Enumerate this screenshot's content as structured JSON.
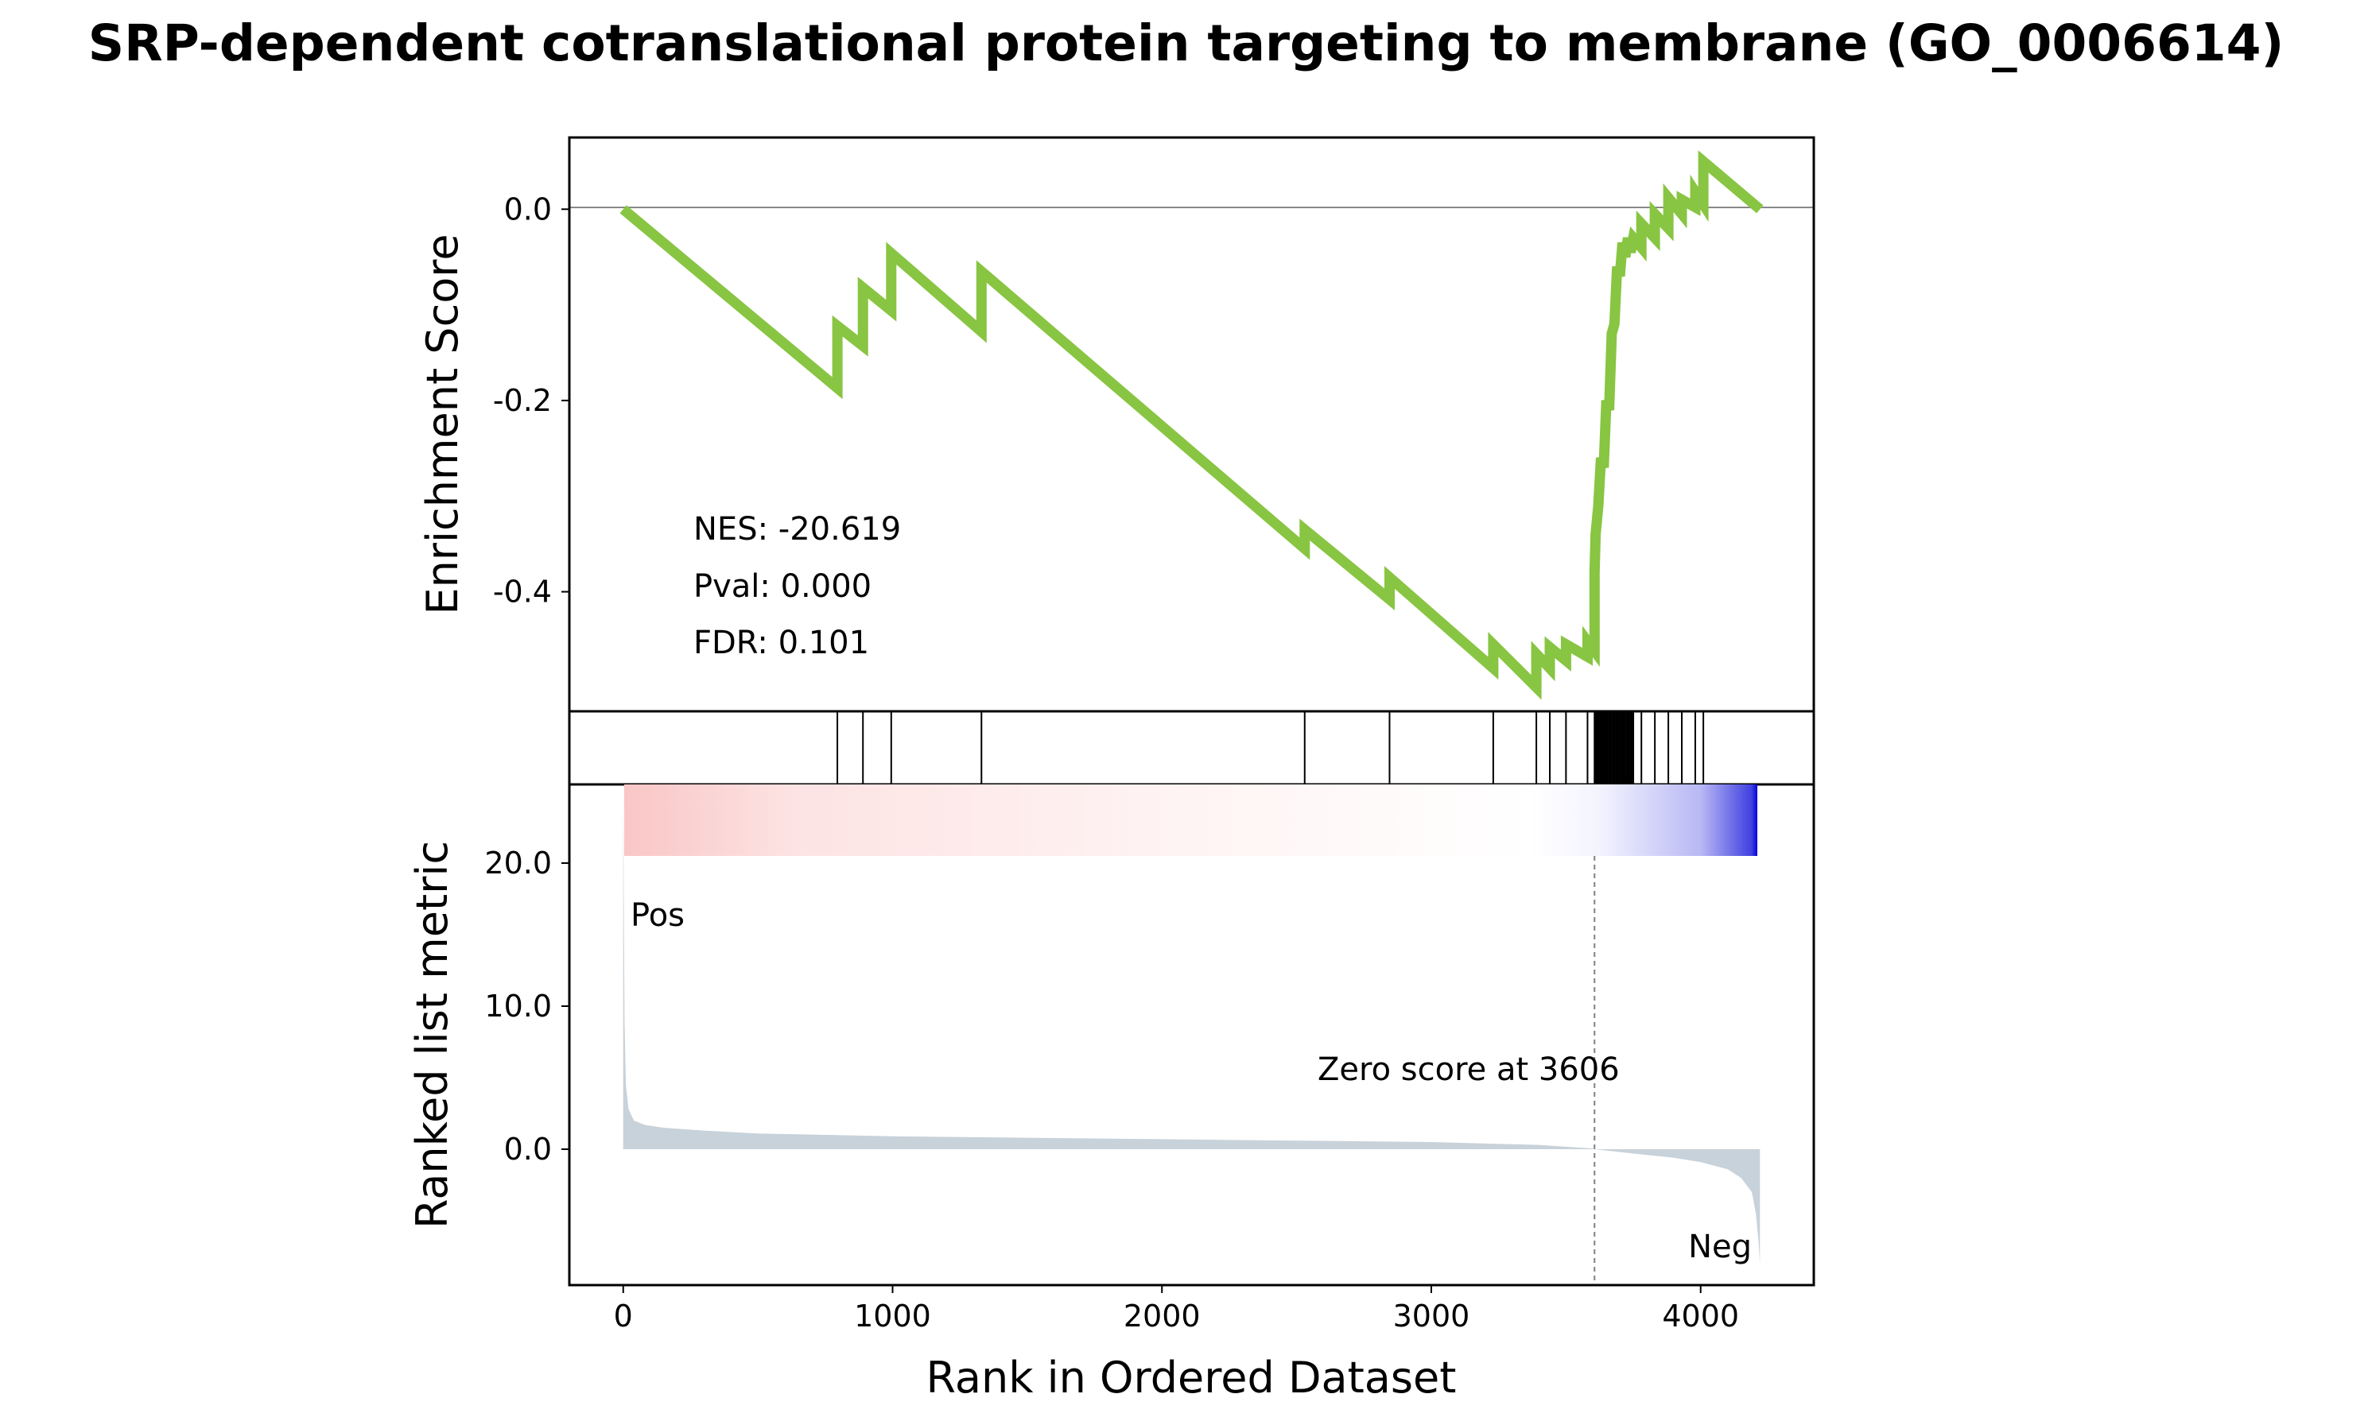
{
  "title": "SRP-dependent cotranslational protein targeting to membrane (GO_0006614)",
  "colors": {
    "es_line": "#88c542",
    "metric_fill": "#c8d2da",
    "pos_color": "#ff0000",
    "neg_color": "#0000ee",
    "zero_line": "#808080",
    "hit_line": "#000000"
  },
  "stats": {
    "nes": "NES: -20.619",
    "pval": "Pval: 0.000",
    "fdr": "FDR: 0.101"
  },
  "labels": {
    "pos": "Pos",
    "neg": "Neg",
    "zero_score": "Zero score at 3606"
  },
  "chart_data": [
    {
      "type": "line",
      "panel": "enrichment",
      "ylabel": "Enrichment Score",
      "xlim": [
        -200,
        4420
      ],
      "ylim": [
        -0.525,
        0.075
      ],
      "yticks": [
        0.0,
        -0.2,
        -0.4
      ],
      "ytick_labels": [
        "0.0",
        "-0.2",
        "-0.4"
      ],
      "x": [
        0,
        795,
        795,
        890,
        890,
        995,
        995,
        1330,
        1330,
        2530,
        2530,
        2845,
        2845,
        3230,
        3230,
        3390,
        3390,
        3440,
        3440,
        3500,
        3500,
        3580,
        3580,
        3606,
        3606,
        3610,
        3620,
        3630,
        3640,
        3650,
        3660,
        3670,
        3680,
        3690,
        3700,
        3710,
        3720,
        3730,
        3740,
        3750,
        3780,
        3780,
        3830,
        3830,
        3880,
        3880,
        3930,
        3930,
        3980,
        3980,
        4010,
        4010,
        4220
      ],
      "y": [
        0.0,
        -0.187,
        -0.122,
        -0.143,
        -0.082,
        -0.106,
        -0.046,
        -0.128,
        -0.065,
        -0.355,
        -0.335,
        -0.408,
        -0.385,
        -0.48,
        -0.455,
        -0.5,
        -0.465,
        -0.48,
        -0.458,
        -0.472,
        -0.455,
        -0.468,
        -0.452,
        -0.462,
        -0.38,
        -0.34,
        -0.31,
        -0.26,
        -0.27,
        -0.2,
        -0.21,
        -0.13,
        -0.12,
        -0.06,
        -0.07,
        -0.035,
        -0.05,
        -0.03,
        -0.045,
        -0.03,
        -0.04,
        -0.015,
        -0.03,
        -0.005,
        -0.02,
        0.012,
        -0.005,
        0.01,
        0.002,
        0.018,
        0.005,
        0.05,
        0.0
      ]
    },
    {
      "type": "rug",
      "panel": "hits",
      "hits": [
        795,
        890,
        995,
        1330,
        2530,
        2845,
        3230,
        3390,
        3440,
        3500,
        3580,
        3606,
        3610,
        3615,
        3620,
        3625,
        3630,
        3635,
        3640,
        3645,
        3650,
        3655,
        3660,
        3665,
        3670,
        3675,
        3680,
        3685,
        3690,
        3695,
        3700,
        3705,
        3710,
        3715,
        3720,
        3725,
        3730,
        3735,
        3740,
        3745,
        3750,
        3780,
        3830,
        3880,
        3930,
        3980,
        4010
      ]
    },
    {
      "type": "area",
      "panel": "ranked_metric",
      "xlabel": "Rank in Ordered Dataset",
      "ylabel": "Ranked list metric",
      "xlim": [
        -200,
        4420
      ],
      "ylim": [
        -9.5,
        25.5
      ],
      "xticks": [
        0,
        1000,
        2000,
        3000,
        4000
      ],
      "xtick_labels": [
        "0",
        "1000",
        "2000",
        "3000",
        "4000"
      ],
      "yticks": [
        20.0,
        10.0,
        0.0
      ],
      "ytick_labels": [
        "20.0",
        "10.0",
        "0.0"
      ],
      "zero_cross": 3606,
      "x": [
        0,
        2,
        5,
        10,
        20,
        40,
        80,
        150,
        300,
        500,
        1000,
        1500,
        2000,
        2500,
        3000,
        3400,
        3600,
        3606,
        3700,
        3800,
        3900,
        4000,
        4100,
        4150,
        4190,
        4205,
        4215,
        4220
      ],
      "y": [
        25.0,
        18.0,
        9.0,
        4.5,
        2.8,
        2.0,
        1.7,
        1.5,
        1.3,
        1.1,
        0.9,
        0.8,
        0.7,
        0.6,
        0.5,
        0.3,
        0.05,
        0.0,
        -0.2,
        -0.4,
        -0.6,
        -0.9,
        -1.4,
        -2.0,
        -3.0,
        -4.5,
        -6.5,
        -8.0
      ]
    }
  ]
}
